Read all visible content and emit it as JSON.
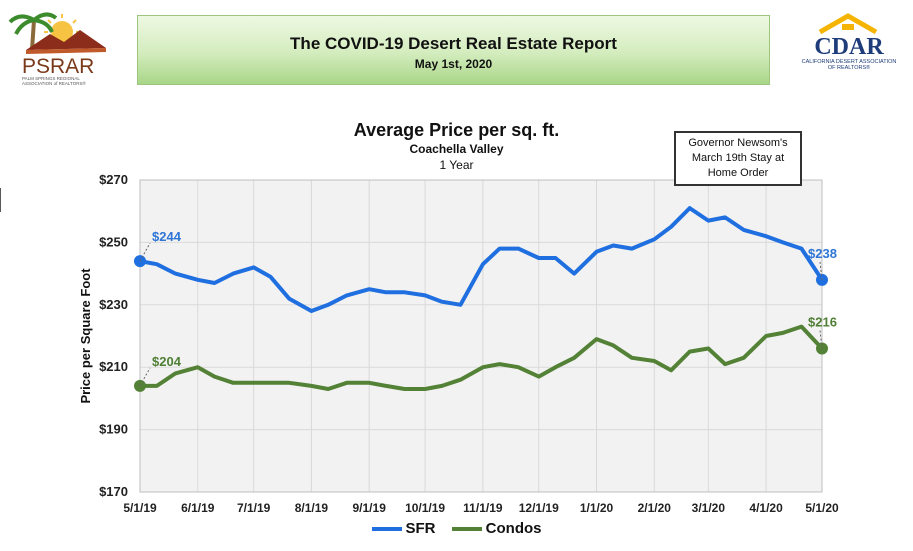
{
  "header": {
    "title": "The COVID-19 Desert Real Estate Report",
    "date": "May 1st, 2020",
    "left_logo": {
      "text": "PSRAR",
      "subtext": "PALM SPRINGS REGIONAL ASSOCIATION of REALTORS®"
    },
    "right_logo": {
      "text": "CDAR",
      "subtext": "CALIFORNIA DESERT ASSOCIATION OF REALTORS®"
    }
  },
  "annotation": {
    "line1": "Governor Newsom's",
    "line2": "March 19th Stay at",
    "line3": "Home Order",
    "date": "3/19/20"
  },
  "colors": {
    "sfr": "#1f6fe0",
    "condos": "#538135",
    "sfr_label": "#2e75d6",
    "condos_label": "#4f7f35",
    "grid": "#d9d9d9",
    "plot_bg": "#f2f2f2"
  },
  "chart_data": {
    "type": "line",
    "title": "Average Price per sq. ft.",
    "subtitle": "Coachella Valley",
    "subtitle2": "1 Year",
    "ylabel": "Price per Square Foot",
    "ylim": [
      170,
      270
    ],
    "yticks": [
      170,
      190,
      210,
      230,
      250,
      270
    ],
    "ytick_labels": [
      "$170",
      "$190",
      "$210",
      "$230",
      "$250",
      "$270"
    ],
    "xticks": [
      "2019-05-01",
      "2019-06-01",
      "2019-07-01",
      "2019-08-01",
      "2019-09-01",
      "2019-10-01",
      "2019-11-01",
      "2019-12-01",
      "2020-01-01",
      "2020-02-01",
      "2020-03-01",
      "2020-04-01",
      "2020-05-01"
    ],
    "xtick_labels": [
      "5/1/19",
      "6/1/19",
      "7/1/19",
      "8/1/19",
      "9/1/19",
      "10/1/19",
      "11/1/19",
      "12/1/19",
      "1/1/20",
      "2/1/20",
      "3/1/20",
      "4/1/20",
      "5/1/20"
    ],
    "grid": true,
    "legend": "bottom",
    "series": [
      {
        "name": "SFR",
        "start_label": "$244",
        "end_label": "$238",
        "x": [
          "2019-05-01",
          "2019-05-10",
          "2019-05-20",
          "2019-06-01",
          "2019-06-10",
          "2019-06-20",
          "2019-07-01",
          "2019-07-10",
          "2019-07-20",
          "2019-08-01",
          "2019-08-10",
          "2019-08-20",
          "2019-09-01",
          "2019-09-10",
          "2019-09-20",
          "2019-10-01",
          "2019-10-10",
          "2019-10-20",
          "2019-11-01",
          "2019-11-10",
          "2019-11-20",
          "2019-12-01",
          "2019-12-10",
          "2019-12-20",
          "2020-01-01",
          "2020-01-10",
          "2020-01-20",
          "2020-02-01",
          "2020-02-10",
          "2020-02-20",
          "2020-03-01",
          "2020-03-10",
          "2020-03-20",
          "2020-04-01",
          "2020-04-10",
          "2020-04-20",
          "2020-05-01"
        ],
        "values": [
          244,
          243,
          240,
          238,
          237,
          240,
          242,
          239,
          232,
          228,
          230,
          233,
          235,
          234,
          234,
          233,
          231,
          230,
          243,
          248,
          248,
          245,
          245,
          240,
          247,
          249,
          248,
          251,
          255,
          261,
          257,
          258,
          254,
          252,
          250,
          248,
          238
        ]
      },
      {
        "name": "Condos",
        "start_label": "$204",
        "end_label": "$216",
        "x": [
          "2019-05-01",
          "2019-05-10",
          "2019-05-20",
          "2019-06-01",
          "2019-06-10",
          "2019-06-20",
          "2019-07-01",
          "2019-07-10",
          "2019-07-20",
          "2019-08-01",
          "2019-08-10",
          "2019-08-20",
          "2019-09-01",
          "2019-09-10",
          "2019-09-20",
          "2019-10-01",
          "2019-10-10",
          "2019-10-20",
          "2019-11-01",
          "2019-11-10",
          "2019-11-20",
          "2019-12-01",
          "2019-12-10",
          "2019-12-20",
          "2020-01-01",
          "2020-01-10",
          "2020-01-20",
          "2020-02-01",
          "2020-02-10",
          "2020-02-20",
          "2020-03-01",
          "2020-03-10",
          "2020-03-20",
          "2020-04-01",
          "2020-04-10",
          "2020-04-20",
          "2020-05-01"
        ],
        "values": [
          204,
          204,
          208,
          210,
          207,
          205,
          205,
          205,
          205,
          204,
          203,
          205,
          205,
          204,
          203,
          203,
          204,
          206,
          210,
          211,
          210,
          207,
          210,
          213,
          219,
          217,
          213,
          212,
          209,
          215,
          216,
          211,
          213,
          220,
          221,
          223,
          216
        ]
      }
    ]
  },
  "legend": {
    "sfr": "SFR",
    "condos": "Condos"
  }
}
